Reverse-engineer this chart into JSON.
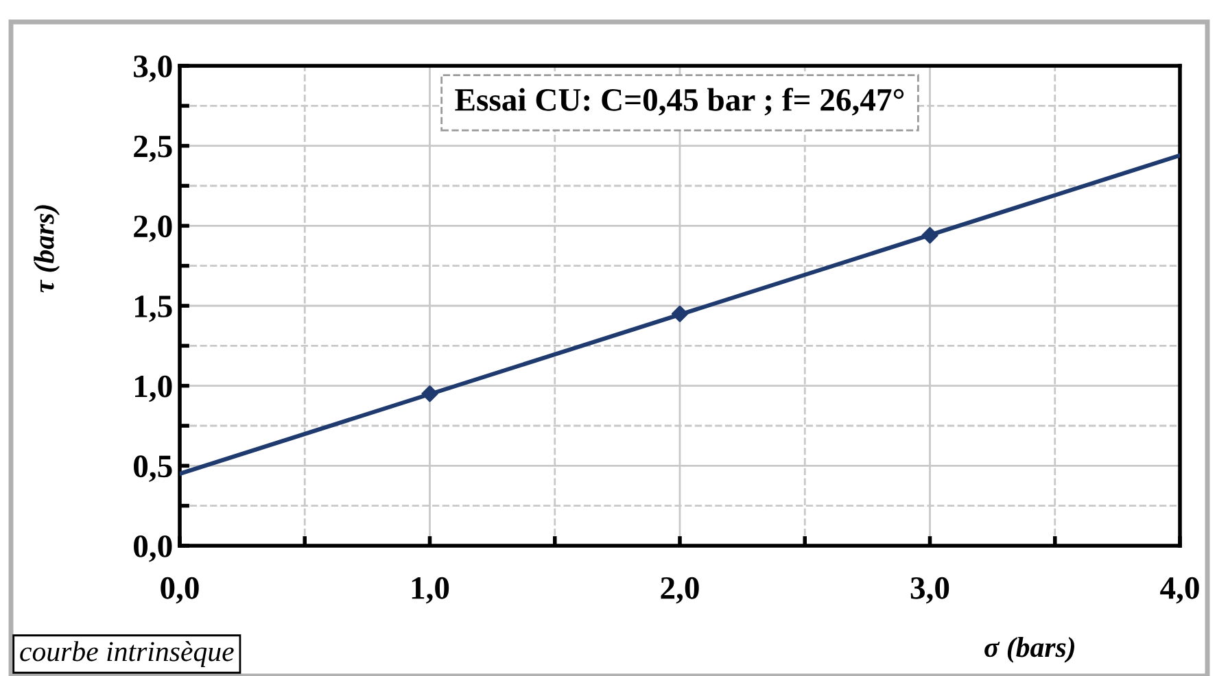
{
  "chart_data": {
    "type": "line",
    "xlabel": "σ (bars)",
    "ylabel": "τ (bars)",
    "xlim": [
      0,
      4
    ],
    "ylim": [
      0,
      3
    ],
    "xticks": [
      {
        "value": 0,
        "label": "0,0"
      },
      {
        "value": 0.5,
        "label": null
      },
      {
        "value": 1,
        "label": "1,0"
      },
      {
        "value": 1.5,
        "label": null
      },
      {
        "value": 2,
        "label": "2,0"
      },
      {
        "value": 2.5,
        "label": null
      },
      {
        "value": 3,
        "label": "3,0"
      },
      {
        "value": 3.5,
        "label": null
      },
      {
        "value": 4,
        "label": "4,0"
      }
    ],
    "yticks": [
      {
        "value": 0,
        "label": "0,0"
      },
      {
        "value": 0.25,
        "label": null
      },
      {
        "value": 0.5,
        "label": "0,5"
      },
      {
        "value": 0.75,
        "label": null
      },
      {
        "value": 1,
        "label": "1,0"
      },
      {
        "value": 1.25,
        "label": null
      },
      {
        "value": 1.5,
        "label": "1,5"
      },
      {
        "value": 1.75,
        "label": null
      },
      {
        "value": 2,
        "label": "2,0"
      },
      {
        "value": 2.25,
        "label": null
      },
      {
        "value": 2.5,
        "label": "2,5"
      },
      {
        "value": 2.75,
        "label": null
      },
      {
        "value": 3,
        "label": "3,0"
      }
    ],
    "grid": true,
    "series": [
      {
        "color": "#1f3a6e",
        "x": [
          0,
          4
        ],
        "values": [
          0.45,
          2.44
        ],
        "marker": "none",
        "line_style": "solid"
      },
      {
        "type": "scatter",
        "color": "#1f3a6e",
        "x": [
          1,
          2,
          3
        ],
        "values": [
          0.95,
          1.45,
          1.94
        ],
        "marker": "diamond"
      }
    ],
    "annotations": [
      "Essai CU: C=0,45 bar ; f= 26,47°",
      "courbe intrinsèque"
    ]
  }
}
